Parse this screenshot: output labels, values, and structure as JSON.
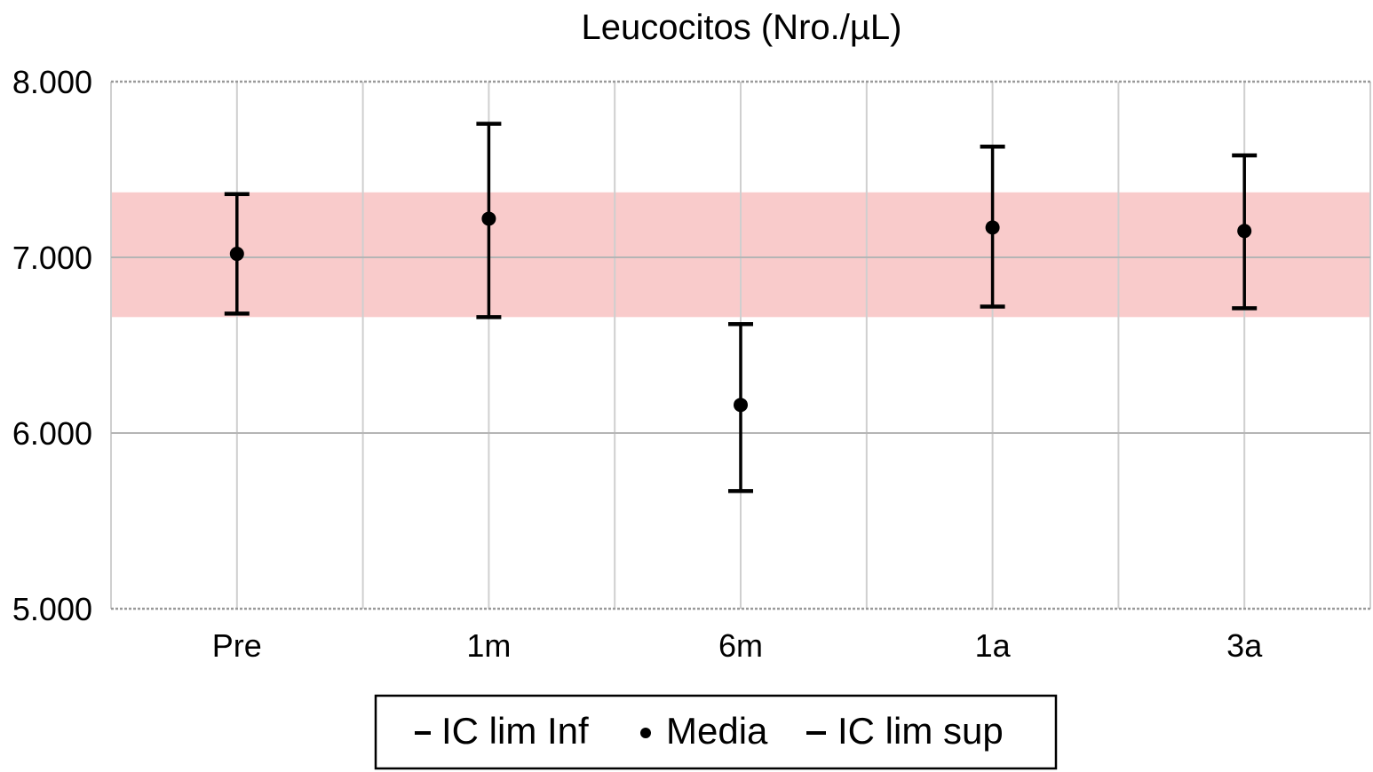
{
  "chart_data": {
    "type": "scatter",
    "title": "Leucocitos (Nro./µL)",
    "xlabel": "",
    "ylabel": "",
    "categories": [
      "Pre",
      "1m",
      "6m",
      "1a",
      "3a"
    ],
    "ylim": [
      5000,
      8000
    ],
    "yticks": [
      5000,
      6000,
      7000,
      8000
    ],
    "ytick_labels": [
      "5.000",
      "6.000",
      "7.000",
      "8.000"
    ],
    "grid": true,
    "series": [
      {
        "name": "IC lim Inf",
        "values": [
          6680,
          6660,
          5670,
          6720,
          6710
        ]
      },
      {
        "name": "Media",
        "values": [
          7020,
          7220,
          6160,
          7170,
          7150
        ]
      },
      {
        "name": "IC lim sup",
        "values": [
          7360,
          7760,
          6620,
          7630,
          7580
        ]
      }
    ],
    "reference_band": {
      "from": 6660,
      "to": 7370,
      "color": "#f9c8c8"
    },
    "legend_position": "bottom",
    "colors": {
      "marker": "#000000",
      "grid": "#cfcfcf",
      "band": "#f9c8c8"
    }
  }
}
